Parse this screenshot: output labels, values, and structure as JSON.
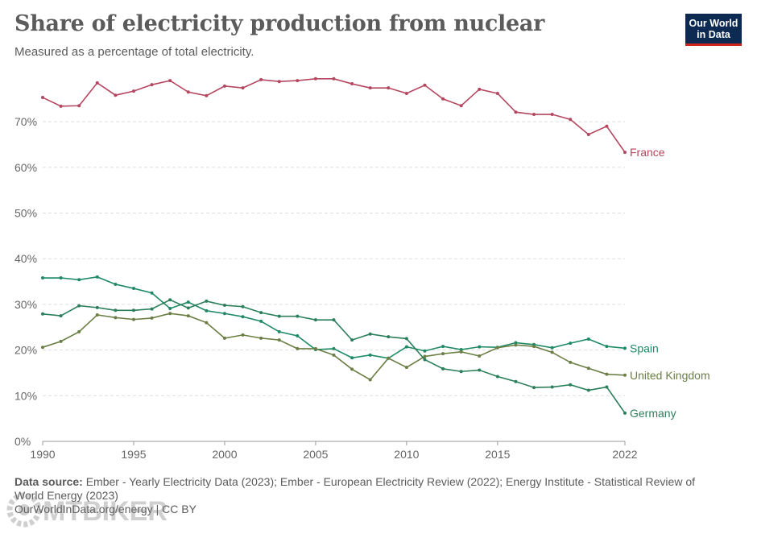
{
  "header": {
    "title": "Share of electricity production from nuclear",
    "subtitle": "Measured as a percentage of total electricity.",
    "logo_line1": "Our World",
    "logo_line2": "in Data"
  },
  "footer": {
    "source_label": "Data source:",
    "source_text": "Ember - Yearly Electricity Data (2023); Ember - European Electricity Review (2022); Energy Institute - Statistical Review of World Energy (2023)",
    "url_license": "OurWorldInData.org/energy | CC BY"
  },
  "watermark": "MTBIKER",
  "chart_data": {
    "type": "line",
    "title": "Share of electricity production from nuclear",
    "xlim": [
      1990,
      2022
    ],
    "ylim": [
      0,
      80
    ],
    "x_ticks": [
      1990,
      1995,
      2000,
      2005,
      2010,
      2015,
      2022
    ],
    "y_ticks": [
      0,
      10,
      20,
      30,
      40,
      50,
      60,
      70
    ],
    "y_tick_labels": [
      "0%",
      "10%",
      "20%",
      "30%",
      "40%",
      "50%",
      "60%",
      "70%"
    ],
    "grid": "horizontal dashed",
    "legend": "line-end labels",
    "x": [
      1990,
      1991,
      1992,
      1993,
      1994,
      1995,
      1996,
      1997,
      1998,
      1999,
      2000,
      2001,
      2002,
      2003,
      2004,
      2005,
      2006,
      2007,
      2008,
      2009,
      2010,
      2011,
      2012,
      2013,
      2014,
      2015,
      2016,
      2017,
      2018,
      2019,
      2020,
      2021,
      2022
    ],
    "series": [
      {
        "name": "France",
        "color": "#b4475f",
        "values": [
          75.3,
          73.4,
          73.5,
          78.5,
          75.8,
          76.7,
          78.1,
          79.0,
          76.5,
          75.7,
          77.8,
          77.4,
          79.2,
          78.8,
          79.0,
          79.4,
          79.4,
          78.3,
          77.4,
          77.4,
          76.2,
          78.0,
          75.0,
          73.5,
          77.1,
          76.2,
          72.1,
          71.6,
          71.6,
          70.5,
          67.2,
          69.0,
          63.3
        ]
      },
      {
        "name": "Spain",
        "color": "#1f8a63",
        "values": [
          35.8,
          35.8,
          35.4,
          36.0,
          34.4,
          33.5,
          32.5,
          29.1,
          30.5,
          28.6,
          28.0,
          27.3,
          26.3,
          24.0,
          23.1,
          20.1,
          20.3,
          18.3,
          18.9,
          18.2,
          20.7,
          19.8,
          20.8,
          20.1,
          20.7,
          20.6,
          21.6,
          21.2,
          20.5,
          21.5,
          22.4,
          20.8,
          20.4
        ]
      },
      {
        "name": "United Kingdom",
        "color": "#6b7e45",
        "values": [
          20.6,
          21.9,
          24.0,
          27.7,
          27.1,
          26.7,
          27.0,
          28.0,
          27.5,
          26.0,
          22.6,
          23.3,
          22.6,
          22.2,
          20.3,
          20.3,
          18.9,
          15.8,
          13.5,
          18.2,
          16.2,
          18.6,
          19.2,
          19.6,
          18.7,
          20.5,
          21.1,
          20.8,
          19.5,
          17.3,
          16.0,
          14.7,
          14.5
        ]
      },
      {
        "name": "Germany",
        "color": "#2c7f5c",
        "values": [
          27.9,
          27.5,
          29.7,
          29.3,
          28.7,
          28.7,
          29.0,
          31.0,
          29.2,
          30.7,
          29.8,
          29.5,
          28.2,
          27.4,
          27.4,
          26.6,
          26.6,
          22.2,
          23.5,
          22.9,
          22.5,
          17.9,
          15.9,
          15.3,
          15.6,
          14.2,
          13.1,
          11.8,
          11.9,
          12.4,
          11.2,
          11.9,
          6.2
        ]
      }
    ]
  }
}
